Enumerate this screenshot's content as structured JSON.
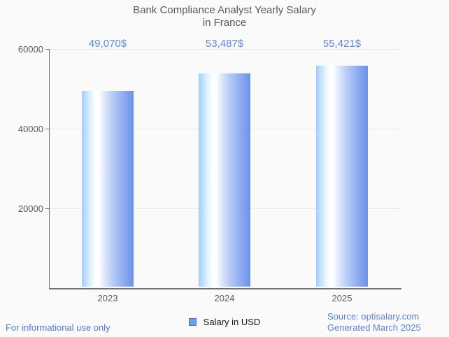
{
  "title": {
    "line1": "Bank Compliance Analyst Yearly Salary",
    "line2": "in France"
  },
  "chart_data": {
    "type": "bar",
    "title": "Bank Compliance Analyst Yearly Salary in France",
    "categories": [
      "2023",
      "2024",
      "2025"
    ],
    "series": [
      {
        "name": "Salary in USD",
        "values": [
          49070,
          53487,
          55421
        ]
      }
    ],
    "value_labels": [
      "49,070$",
      "53,487$",
      "55,421$"
    ],
    "xlabel": "",
    "ylabel": "",
    "ylim": [
      0,
      60000
    ],
    "yticks": [
      20000,
      40000,
      60000
    ],
    "ytick_labels": [
      "20000",
      "40000",
      "60000"
    ],
    "grid": true,
    "legend_position": "bottom",
    "bar_color_main": "#6b92ea",
    "bar_color_light": "#a0cefa"
  },
  "legend": {
    "label": "Salary in USD",
    "swatch_color": "#66a1e7"
  },
  "footer": {
    "disclaimer": "For informational use only",
    "source_line1": "Source: optisalary.com",
    "source_line2": "Generated March 2025"
  },
  "colors": {
    "background": "#fafafa",
    "title_text": "#58585a",
    "axis_text": "#5a5a5d",
    "axis_line": "#707070",
    "gridline": "#e7e7e7",
    "value_label_text": "#5b87e9",
    "footer_blue": "#4d7bd2",
    "source_blue": "#5b82d8"
  }
}
